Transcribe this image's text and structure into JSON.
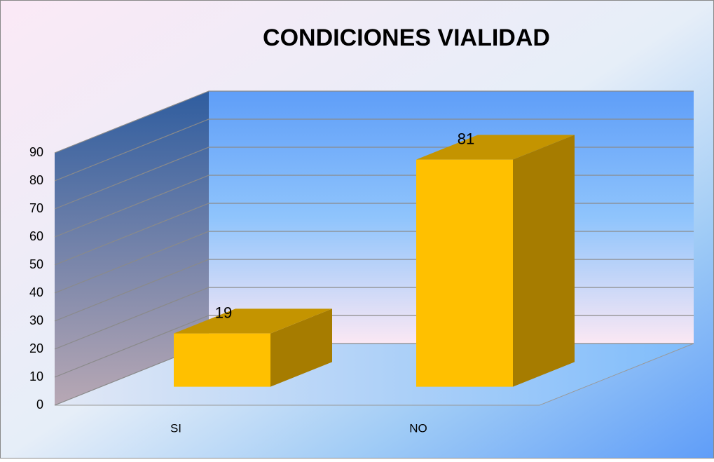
{
  "chart_data": {
    "type": "bar",
    "title": "CONDICIONES VIALIDAD",
    "categories": [
      "SI",
      "NO"
    ],
    "values": [
      19,
      81
    ],
    "color": "#ffc000",
    "ylim": [
      0,
      90
    ],
    "yticks": [
      0,
      10,
      20,
      30,
      40,
      50,
      60,
      70,
      80,
      90
    ],
    "grid": true
  }
}
